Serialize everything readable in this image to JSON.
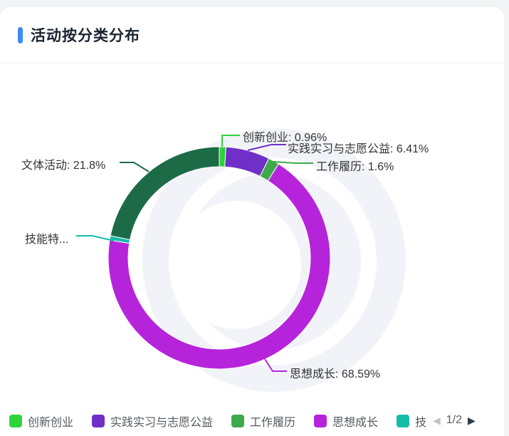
{
  "header": {
    "title": "活动按分类分布"
  },
  "theme": {
    "accent_blue": "#3D8BF2",
    "page_bg": "#F3F4F6",
    "card_bg": "#FFFFFF",
    "label_text": "#333333",
    "legend_text": "#55595F",
    "halo_gray": "#F2F3F8"
  },
  "chart_data": {
    "type": "pie",
    "subtype": "donut",
    "title": "活动按分类分布",
    "unit": "%",
    "start_angle": "top, clockwise",
    "legend_position": "bottom",
    "series": [
      {
        "name": "创新创业",
        "value": 0.96,
        "color": "#2FD33B",
        "label": "创新创业: 0.96%"
      },
      {
        "name": "实践实习与志愿公益",
        "value": 6.41,
        "color": "#7030C8",
        "label": "实践实习与志愿公益: 6.41%"
      },
      {
        "name": "工作履历",
        "value": 1.6,
        "color": "#3EA94A",
        "label": "工作履历: 1.6%"
      },
      {
        "name": "思想成长",
        "value": 68.59,
        "color": "#B524DB",
        "label": "思想成长: 68.59%"
      },
      {
        "name": "技能特...",
        "value": 0.64,
        "color": "#15BCA8",
        "label": "技能特..."
      },
      {
        "name": "文体活动",
        "value": 21.8,
        "color": "#1C6B46",
        "label": "文体活动: 21.8%"
      }
    ]
  },
  "legend": {
    "items": [
      {
        "label": "创新创业",
        "color": "#2FD33B"
      },
      {
        "label": "实践实习与志愿公益",
        "color": "#7030C8"
      },
      {
        "label": "工作履历",
        "color": "#3EA94A"
      },
      {
        "label": "思想成长",
        "color": "#B524DB"
      },
      {
        "label": "技",
        "color": "#15BCA8"
      }
    ],
    "page": "1/2",
    "prev_icon": "◀",
    "next_icon": "▶"
  }
}
